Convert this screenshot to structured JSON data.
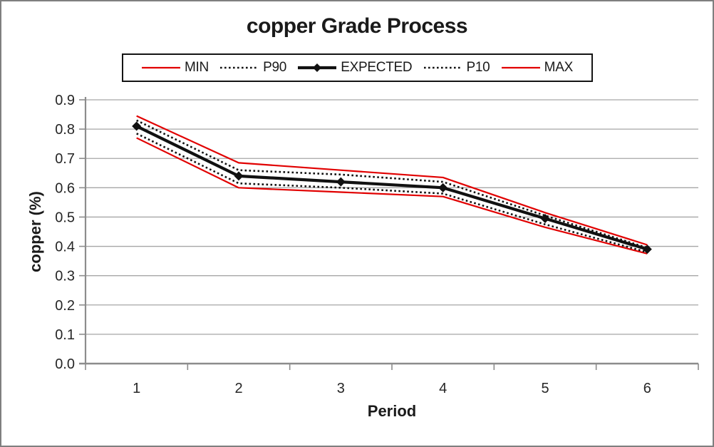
{
  "window": {
    "background": "#ffffff",
    "border_color": "#7f7f7f"
  },
  "chart_data": {
    "type": "line",
    "title": "copper Grade Process",
    "xlabel": "Period",
    "ylabel": "copper (%)",
    "x": [
      1,
      2,
      3,
      4,
      5,
      6
    ],
    "ylim": [
      0.0,
      0.9
    ],
    "ytick_step": 0.1,
    "ytick_labels": [
      "0.0",
      "0.1",
      "0.2",
      "0.3",
      "0.4",
      "0.5",
      "0.6",
      "0.7",
      "0.8",
      "0.9"
    ],
    "grid": "horizontal",
    "legend_position": "top-center-boxed",
    "colors": {
      "grid": "#a6a6a6",
      "axis": "#8c8c8c",
      "tick_text": "#262626",
      "red_series": "#e10000",
      "black_series": "#111111",
      "legend_border": "#141414"
    },
    "series": [
      {
        "name": "MIN",
        "color": "#e10000",
        "style": "solid",
        "width": 2.2,
        "marker": "none",
        "values": [
          0.77,
          0.6,
          0.585,
          0.57,
          0.465,
          0.375
        ]
      },
      {
        "name": "P90",
        "color": "#111111",
        "style": "dotted",
        "width": 2.6,
        "marker": "none",
        "values": [
          0.83,
          0.66,
          0.645,
          0.62,
          0.505,
          0.395
        ]
      },
      {
        "name": "EXPECTED",
        "color": "#111111",
        "style": "solid",
        "width": 4.2,
        "marker": "diamond",
        "values": [
          0.81,
          0.64,
          0.62,
          0.6,
          0.495,
          0.39
        ]
      },
      {
        "name": "P10",
        "color": "#111111",
        "style": "dotted",
        "width": 2.6,
        "marker": "none",
        "values": [
          0.785,
          0.615,
          0.6,
          0.58,
          0.475,
          0.38
        ]
      },
      {
        "name": "MAX",
        "color": "#e10000",
        "style": "solid",
        "width": 2.2,
        "marker": "none",
        "values": [
          0.845,
          0.685,
          0.66,
          0.635,
          0.515,
          0.405
        ]
      }
    ]
  }
}
